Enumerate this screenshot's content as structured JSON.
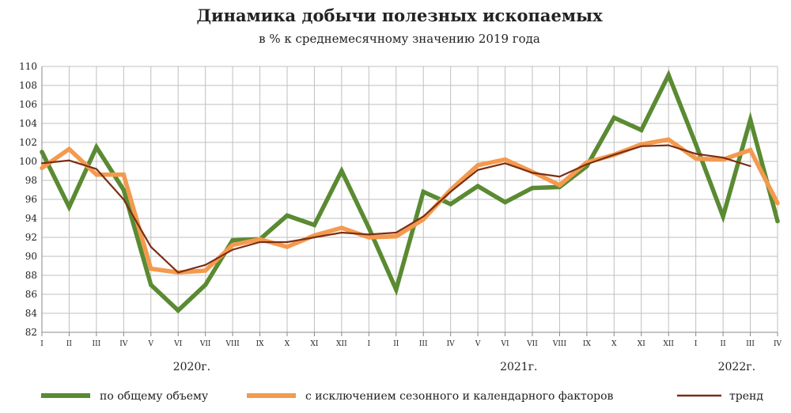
{
  "colors": {
    "total": "#5a8a32",
    "seasonal": "#f39a4f",
    "trend": "#7b2e12",
    "grid": "#bfbfbf",
    "axis": "#888888"
  },
  "chart_data": {
    "type": "line",
    "title": "Динамика добычи полезных ископаемых",
    "subtitle": "в % к среднемесячному значению 2019 года",
    "xlabel": "",
    "ylabel": "",
    "ylim": [
      82,
      110
    ],
    "yticks": [
      82,
      84,
      86,
      88,
      90,
      92,
      94,
      96,
      98,
      100,
      102,
      104,
      106,
      108,
      110
    ],
    "grid": true,
    "legend_position": "bottom",
    "categories": [
      "I",
      "II",
      "III",
      "IV",
      "V",
      "VI",
      "VII",
      "VIII",
      "IX",
      "X",
      "XI",
      "XII",
      "I",
      "II",
      "III",
      "IV",
      "V",
      "VI",
      "VII",
      "VIII",
      "IX",
      "X",
      "XI",
      "XII",
      "I",
      "II",
      "III",
      "IV"
    ],
    "year_labels": [
      "2020г.",
      "2021г.",
      "2022г."
    ],
    "series": [
      {
        "name": "по общему объему",
        "values": [
          101.0,
          95.2,
          101.5,
          97.0,
          87.0,
          84.3,
          87.0,
          91.7,
          91.8,
          94.3,
          93.3,
          99.0,
          93.0,
          86.5,
          96.8,
          95.5,
          97.4,
          95.7,
          97.2,
          97.3,
          99.5,
          104.6,
          103.3,
          109.1,
          101.8,
          94.2,
          104.4,
          93.7
        ]
      },
      {
        "name": "с исключением сезонного и календарного факторов",
        "values": [
          99.3,
          101.3,
          98.6,
          98.6,
          88.7,
          88.3,
          88.5,
          91.2,
          91.8,
          91.0,
          92.2,
          93.0,
          92.0,
          92.1,
          93.9,
          97.0,
          99.6,
          100.2,
          98.9,
          97.5,
          99.9,
          100.7,
          101.8,
          102.3,
          100.3,
          100.2,
          101.2,
          95.6
        ]
      },
      {
        "name": "тренд",
        "values": [
          99.8,
          100.1,
          99.2,
          96.0,
          91.0,
          88.3,
          89.1,
          90.7,
          91.5,
          91.5,
          92.0,
          92.5,
          92.3,
          92.5,
          94.2,
          96.8,
          99.1,
          99.8,
          98.8,
          98.4,
          99.7,
          100.7,
          101.6,
          101.7,
          100.8,
          100.4,
          99.5,
          null
        ]
      }
    ]
  }
}
